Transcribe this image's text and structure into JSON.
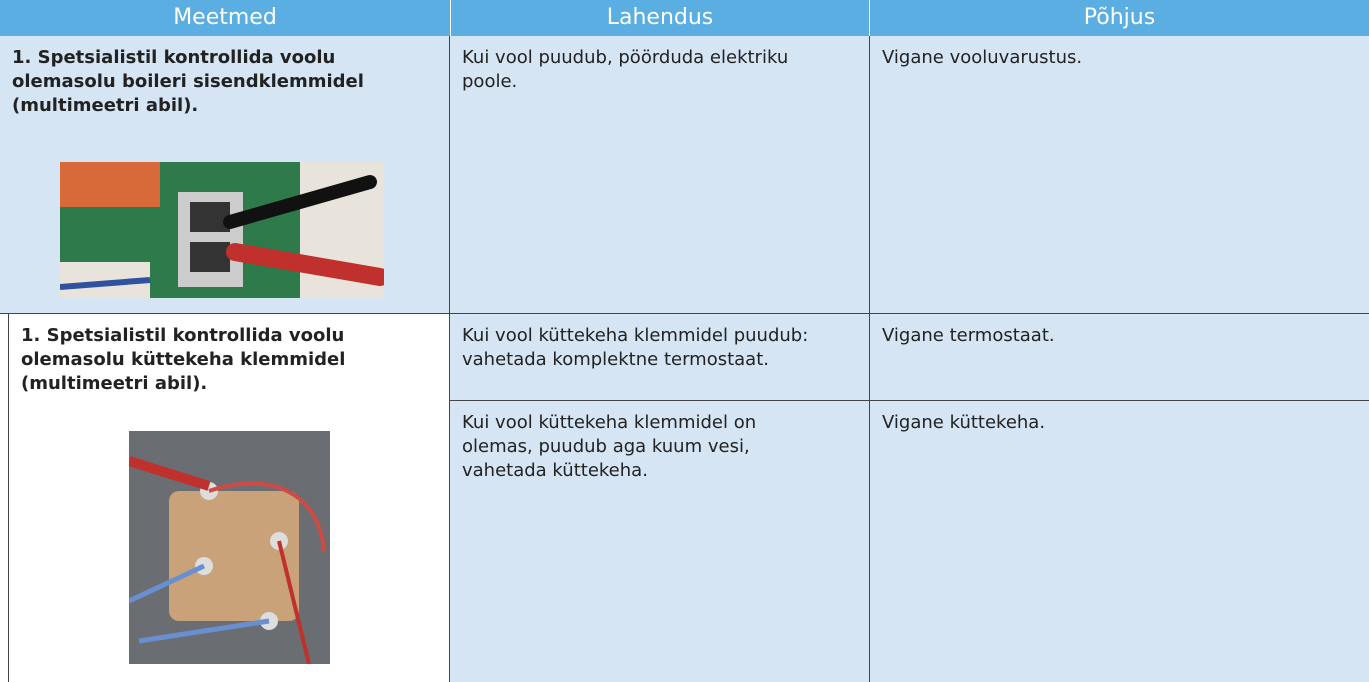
{
  "table": {
    "header": [
      "Meetmed",
      "Lahendus",
      "Põhjus"
    ],
    "rows": [
      {
        "measure": "1. Spetsialistil kontrollida voolu olemasolu boileri sisendklemmidel (multimeetri abil).",
        "solutions": [
          {
            "solution": "Kui vool puudub, pöörduda elektriku poole.",
            "cause": "Vigane vooluvarustus."
          }
        ]
      },
      {
        "measure": "1. Spetsialistil kontrollida voolu olemasolu küttekeha klemmidel (multimeetri abil).",
        "solutions": [
          {
            "solution": "Kui vool küttekeha klemmidel puudub: vahetada komplektne termostaat.",
            "cause": "Vigane termostaat."
          },
          {
            "solution": "Kui vool küttekeha klemmidel on olemas, puudub aga kuum vesi, vahetada küttekeha.",
            "cause": "Vigane küttekeha."
          }
        ]
      }
    ]
  }
}
